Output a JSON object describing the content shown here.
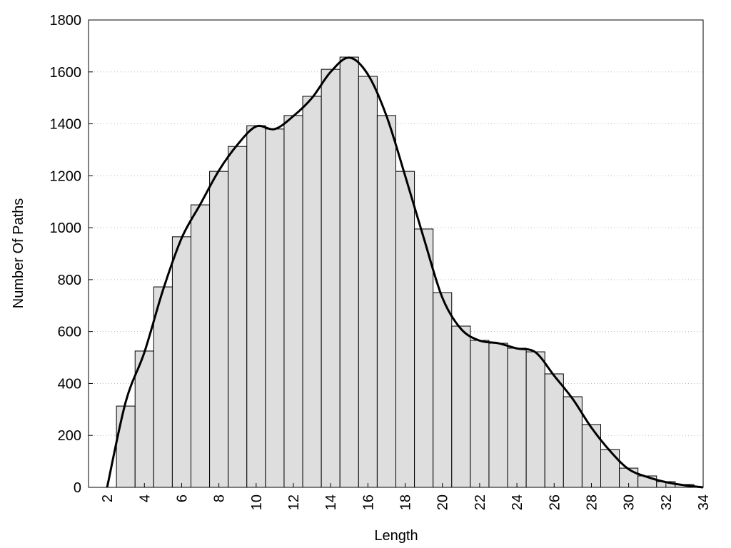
{
  "chart_data": {
    "type": "histogram",
    "xlabel": "Length",
    "ylabel": "Number Of Paths",
    "bins": [
      2.5,
      3.5,
      4.5,
      5.5,
      6.5,
      7.5,
      8.5,
      9.5,
      10.5,
      11.5,
      12.5,
      13.5,
      14.5,
      15.5,
      16.5,
      17.5,
      18.5,
      19.5,
      20.5,
      21.5,
      22.5,
      23.5,
      24.5,
      25.5,
      26.5,
      27.5,
      28.5,
      29.5,
      30.5,
      31.5,
      32.5,
      33.5
    ],
    "values": [
      313,
      525,
      772,
      965,
      1088,
      1217,
      1313,
      1393,
      1380,
      1432,
      1506,
      1610,
      1657,
      1583,
      1432,
      1217,
      995,
      750,
      621,
      566,
      555,
      536,
      522,
      437,
      349,
      242,
      146,
      74,
      44,
      22,
      11
    ],
    "color": "#dedede",
    "line": {
      "x": [
        2,
        3,
        4,
        5,
        6,
        7,
        8,
        9,
        10,
        11,
        12,
        13,
        14,
        15,
        16,
        17,
        18,
        19,
        20,
        21,
        22,
        23,
        24,
        25,
        26,
        27,
        28,
        29,
        30,
        31,
        32,
        33,
        34
      ],
      "values": [
        0,
        330,
        520,
        760,
        960,
        1090,
        1220,
        1320,
        1390,
        1380,
        1430,
        1500,
        1600,
        1655,
        1590,
        1430,
        1200,
        960,
        730,
        610,
        565,
        555,
        535,
        520,
        430,
        340,
        230,
        140,
        70,
        40,
        20,
        8,
        0
      ],
      "color": "#000000"
    },
    "xlim": [
      1,
      34
    ],
    "ylim": [
      0,
      1800
    ],
    "xticks": [
      2,
      4,
      6,
      8,
      10,
      12,
      14,
      16,
      18,
      20,
      22,
      24,
      26,
      28,
      30,
      32,
      34
    ],
    "yticks": [
      0,
      200,
      400,
      600,
      800,
      1000,
      1200,
      1400,
      1600,
      1800
    ],
    "grid": true
  }
}
